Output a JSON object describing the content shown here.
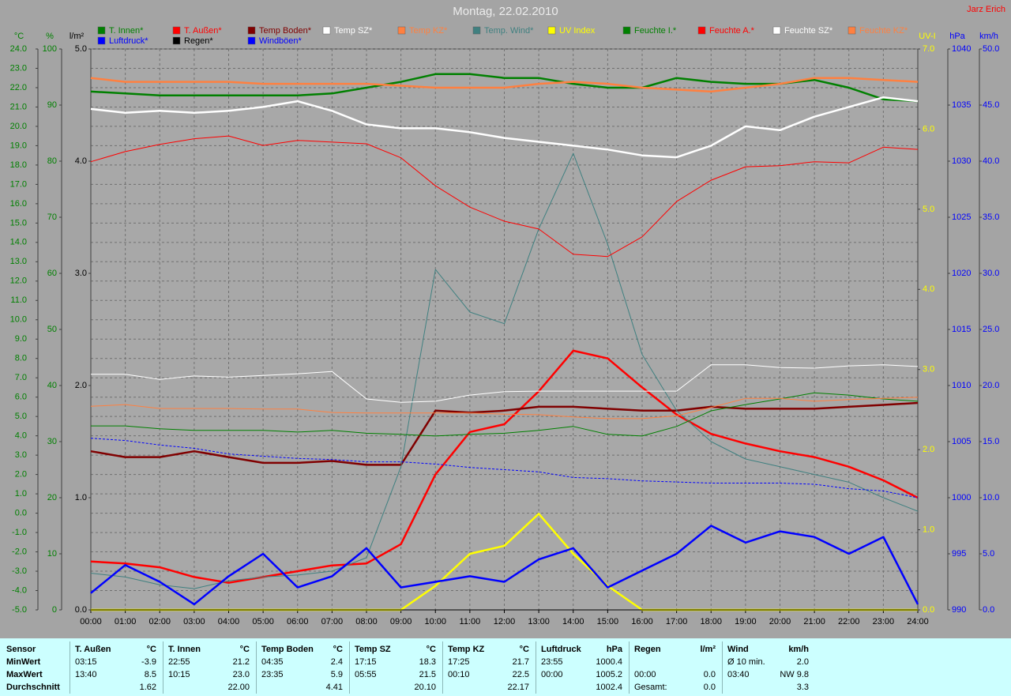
{
  "chart_data": {
    "type": "line",
    "title": "Montag, 22.02.2010",
    "author": "Jarz Erich",
    "grid": true,
    "x": [
      0,
      1,
      2,
      3,
      4,
      5,
      6,
      7,
      8,
      9,
      10,
      11,
      12,
      13,
      14,
      15,
      16,
      17,
      18,
      19,
      20,
      21,
      22,
      23,
      24
    ],
    "xlim": [
      0,
      24
    ],
    "xticks": [
      {
        "value": 0,
        "label": "00:00"
      },
      {
        "value": 1,
        "label": "01:00"
      },
      {
        "value": 2,
        "label": "02:00"
      },
      {
        "value": 3,
        "label": "03:00"
      },
      {
        "value": 4,
        "label": "04:00"
      },
      {
        "value": 5,
        "label": "05:00"
      },
      {
        "value": 6,
        "label": "06:00"
      },
      {
        "value": 7,
        "label": "07:00"
      },
      {
        "value": 8,
        "label": "08:00"
      },
      {
        "value": 9,
        "label": "09:00"
      },
      {
        "value": 10,
        "label": "10:00"
      },
      {
        "value": 11,
        "label": "11:00"
      },
      {
        "value": 12,
        "label": "12:00"
      },
      {
        "value": 13,
        "label": "13:00"
      },
      {
        "value": 14,
        "label": "14:00"
      },
      {
        "value": 15,
        "label": "15:00"
      },
      {
        "value": 16,
        "label": "16:00"
      },
      {
        "value": 17,
        "label": "17:00"
      },
      {
        "value": 18,
        "label": "18:00"
      },
      {
        "value": 19,
        "label": "19:00"
      },
      {
        "value": 20,
        "label": "20:00"
      },
      {
        "value": 21,
        "label": "21:00"
      },
      {
        "value": 22,
        "label": "22:00"
      },
      {
        "value": 23,
        "label": "23:00"
      },
      {
        "value": 24,
        "label": "24:00"
      }
    ],
    "axes": [
      {
        "label": "°C",
        "side": "left",
        "color": "#008000",
        "lim": [
          -5,
          24
        ],
        "ticks": [
          {
            "value": -5,
            "label": "-5.0"
          },
          {
            "value": -4,
            "label": "-4.0"
          },
          {
            "value": -3,
            "label": "-3.0"
          },
          {
            "value": -2,
            "label": "-2.0"
          },
          {
            "value": -1,
            "label": "-1.0"
          },
          {
            "value": 0,
            "label": "0.0"
          },
          {
            "value": 1,
            "label": "1.0"
          },
          {
            "value": 2,
            "label": "2.0"
          },
          {
            "value": 3,
            "label": "3.0"
          },
          {
            "value": 4,
            "label": "4.0"
          },
          {
            "value": 5,
            "label": "5.0"
          },
          {
            "value": 6,
            "label": "6.0"
          },
          {
            "value": 7,
            "label": "7.0"
          },
          {
            "value": 8,
            "label": "8.0"
          },
          {
            "value": 9,
            "label": "9.0"
          },
          {
            "value": 10,
            "label": "10.0"
          },
          {
            "value": 11,
            "label": "11.0"
          },
          {
            "value": 12,
            "label": "12.0"
          },
          {
            "value": 13,
            "label": "13.0"
          },
          {
            "value": 14,
            "label": "14.0"
          },
          {
            "value": 15,
            "label": "15.0"
          },
          {
            "value": 16,
            "label": "16.0"
          },
          {
            "value": 17,
            "label": "17.0"
          },
          {
            "value": 18,
            "label": "18.0"
          },
          {
            "value": 19,
            "label": "19.0"
          },
          {
            "value": 20,
            "label": "20.0"
          },
          {
            "value": 21,
            "label": "21.0"
          },
          {
            "value": 22,
            "label": "22.0"
          },
          {
            "value": 23,
            "label": "23.0"
          },
          {
            "value": 24,
            "label": "24.0"
          }
        ]
      },
      {
        "label": "%",
        "side": "left",
        "color": "#008000",
        "lim": [
          0,
          100
        ],
        "ticks": [
          0,
          10,
          20,
          30,
          40,
          50,
          60,
          70,
          80,
          90,
          100
        ]
      },
      {
        "label": "l/m²",
        "side": "left",
        "color": "#000000",
        "lim": [
          0,
          5
        ],
        "ticks": [
          {
            "value": 0,
            "label": "0.0"
          },
          {
            "value": 1,
            "label": "1.0"
          },
          {
            "value": 2,
            "label": "2.0"
          },
          {
            "value": 3,
            "label": "3.0"
          },
          {
            "value": 4,
            "label": "4.0"
          },
          {
            "value": 5,
            "label": "5.0"
          }
        ]
      },
      {
        "label": "UV-I",
        "side": "right",
        "color": "#ffff00",
        "lim": [
          0,
          7
        ],
        "ticks": [
          {
            "value": 0,
            "label": "0.0"
          },
          {
            "value": 1,
            "label": "1.0"
          },
          {
            "value": 2,
            "label": "2.0"
          },
          {
            "value": 3,
            "label": "3.0"
          },
          {
            "value": 4,
            "label": "4.0"
          },
          {
            "value": 5,
            "label": "5.0"
          },
          {
            "value": 6,
            "label": "6.0"
          },
          {
            "value": 7,
            "label": "7.0"
          }
        ]
      },
      {
        "label": "hPa",
        "side": "right",
        "color": "#0000ff",
        "lim": [
          990,
          1040
        ],
        "ticks": [
          990,
          995,
          1000,
          1005,
          1010,
          1015,
          1020,
          1025,
          1030,
          1035,
          1040
        ]
      },
      {
        "label": "km/h",
        "side": "right",
        "color": "#0000ff",
        "lim": [
          0,
          50
        ],
        "ticks": [
          {
            "value": 0,
            "label": "0.0"
          },
          {
            "value": 5,
            "label": "5.0"
          },
          {
            "value": 10,
            "label": "10.0"
          },
          {
            "value": 15,
            "label": "15.0"
          },
          {
            "value": 20,
            "label": "20.0"
          },
          {
            "value": 25,
            "label": "25.0"
          },
          {
            "value": 30,
            "label": "30.0"
          },
          {
            "value": 35,
            "label": "35.0"
          },
          {
            "value": 40,
            "label": "40.0"
          },
          {
            "value": 45,
            "label": "45.0"
          },
          {
            "value": 50,
            "label": "50.0"
          }
        ]
      }
    ],
    "series": [
      {
        "name": "T. Innen*",
        "color": "#008000",
        "axis": 0,
        "line": "thick",
        "values": [
          21.8,
          21.7,
          21.6,
          21.6,
          21.6,
          21.6,
          21.6,
          21.7,
          22.0,
          22.3,
          22.7,
          22.7,
          22.5,
          22.5,
          22.2,
          22.0,
          22.0,
          22.5,
          22.3,
          22.2,
          22.2,
          22.4,
          22.0,
          21.4,
          21.3
        ]
      },
      {
        "name": "T. Außen*",
        "color": "#ff0000",
        "axis": 0,
        "line": "thick",
        "values": [
          -2.5,
          -2.6,
          -2.8,
          -3.3,
          -3.6,
          -3.3,
          -3.0,
          -2.7,
          -2.6,
          -1.6,
          2.0,
          4.2,
          4.6,
          6.3,
          8.4,
          8.0,
          6.5,
          5.1,
          4.1,
          3.6,
          3.2,
          2.9,
          2.4,
          1.7,
          0.8
        ]
      },
      {
        "name": "Temp Boden*",
        "color": "#800000",
        "axis": 0,
        "line": "thick",
        "values": [
          3.2,
          2.9,
          2.9,
          3.2,
          2.9,
          2.6,
          2.6,
          2.7,
          2.5,
          2.5,
          5.3,
          5.2,
          5.3,
          5.5,
          5.5,
          5.4,
          5.3,
          5.3,
          5.5,
          5.4,
          5.4,
          5.4,
          5.5,
          5.6,
          5.7
        ]
      },
      {
        "name": "Temp SZ*",
        "color": "#ffffff",
        "axis": 0,
        "line": "thick",
        "values": [
          20.9,
          20.7,
          20.8,
          20.7,
          20.8,
          21.0,
          21.3,
          20.8,
          20.1,
          19.9,
          19.9,
          19.7,
          19.4,
          19.2,
          19.0,
          18.8,
          18.5,
          18.4,
          19.0,
          20.0,
          19.8,
          20.5,
          21.0,
          21.5,
          21.3
        ]
      },
      {
        "name": "Temp KZ*",
        "color": "#ff8040",
        "axis": 0,
        "line": "thick",
        "values": [
          22.5,
          22.3,
          22.3,
          22.3,
          22.3,
          22.2,
          22.2,
          22.2,
          22.2,
          22.1,
          22.0,
          22.0,
          22.0,
          22.2,
          22.3,
          22.2,
          22.0,
          21.9,
          21.8,
          22.0,
          22.2,
          22.5,
          22.5,
          22.4,
          22.3
        ]
      },
      {
        "name": "Temp. Wind*",
        "color": "#408080",
        "axis": 0,
        "line": "thin",
        "values": [
          -3.1,
          -3.3,
          -3.7,
          -3.9,
          -3.5,
          -3.3,
          -3.2,
          -3.0,
          -2.3,
          2.4,
          12.6,
          10.4,
          9.8,
          14.7,
          18.6,
          13.9,
          8.2,
          5.3,
          3.7,
          2.8,
          2.4,
          2.0,
          1.6,
          0.8,
          0.1
        ]
      },
      {
        "name": "UV Index",
        "color": "#ffff00",
        "axis": 3,
        "line": "thick",
        "values": [
          0,
          0,
          0,
          0,
          0,
          0,
          0,
          0,
          0,
          0,
          0.3,
          0.7,
          0.8,
          1.2,
          0.7,
          0.3,
          0,
          0,
          0,
          0,
          0,
          0,
          0,
          0,
          0
        ]
      },
      {
        "name": "Feuchte I.*",
        "color": "#008000",
        "axis": 1,
        "line": "thin",
        "values": [
          32.8,
          32.8,
          32.3,
          32,
          32,
          32,
          31.7,
          32,
          31.5,
          31.3,
          31,
          31.3,
          31.5,
          32,
          32.7,
          31.3,
          31,
          32.7,
          35.5,
          36.6,
          37.6,
          38.7,
          38.3,
          37.6,
          37.2
        ]
      },
      {
        "name": "Feuchte A.*",
        "color": "#ff0000",
        "axis": 1,
        "line": "thin",
        "values": [
          79.9,
          81.7,
          83,
          84,
          84.5,
          82.8,
          83.7,
          83.4,
          83.1,
          80.6,
          75.6,
          71.8,
          69.3,
          67.9,
          63.4,
          63,
          66.5,
          72.8,
          76.6,
          79,
          79.2,
          79.9,
          79.7,
          82.5,
          82.1
        ]
      },
      {
        "name": "Feuchte SZ*",
        "color": "#ffffff",
        "axis": 1,
        "line": "thin",
        "values": [
          42,
          42,
          41.1,
          41.7,
          41.5,
          41.8,
          42.1,
          42.5,
          37.6,
          37,
          37.2,
          38.3,
          38.9,
          39,
          39,
          39,
          39,
          39,
          43.7,
          43.7,
          43.2,
          43.1,
          43.5,
          43.7,
          43.4
        ]
      },
      {
        "name": "Feuchte KZ*",
        "color": "#ff8040",
        "axis": 1,
        "line": "thin",
        "values": [
          36.3,
          36.6,
          35.9,
          35.9,
          35.9,
          35.8,
          35.8,
          35.2,
          35.1,
          35.1,
          35.1,
          35.1,
          34.9,
          34.8,
          34.4,
          34.1,
          34.1,
          34.6,
          36.1,
          37.7,
          37.7,
          37.2,
          37.5,
          37.7,
          37.9
        ]
      },
      {
        "name": "Luftdruck*",
        "color": "#0000ff",
        "axis": 4,
        "line": "dashed",
        "values": [
          1005.3,
          1005.1,
          1004.7,
          1004.4,
          1003.9,
          1003.7,
          1003.5,
          1003.4,
          1003.2,
          1003.2,
          1003.0,
          1002.7,
          1002.5,
          1002.3,
          1001.8,
          1001.7,
          1001.5,
          1001.4,
          1001.3,
          1001.3,
          1001.3,
          1001.2,
          1000.8,
          1000.6,
          1000.0
        ]
      },
      {
        "name": "Regen*",
        "color": "#000000",
        "axis": 2,
        "line": "thin",
        "values": [
          0,
          0,
          0,
          0,
          0,
          0,
          0,
          0,
          0,
          0,
          0,
          0,
          0,
          0,
          0,
          0,
          0,
          0,
          0,
          0,
          0,
          0,
          0,
          0,
          0
        ]
      },
      {
        "name": "Windböen*",
        "color": "#0000ff",
        "axis": 5,
        "line": "thick",
        "values": [
          1.5,
          4.0,
          2.5,
          0.5,
          3.0,
          5.0,
          2.0,
          3.0,
          5.5,
          2.0,
          2.5,
          3.0,
          2.5,
          4.5,
          5.5,
          2.0,
          3.5,
          5.0,
          7.5,
          6.0,
          7.0,
          6.5,
          5.0,
          6.5,
          0.5
        ]
      }
    ]
  },
  "summary_table": {
    "header": "Sensor",
    "row_labels": [
      "MinWert",
      "MaxWert",
      "Durchschnitt"
    ],
    "groups": [
      {
        "name": "T. Außen",
        "unit": "°C",
        "rows": [
          [
            "03:15",
            "-3.9"
          ],
          [
            "13:40",
            "8.5"
          ],
          [
            null,
            "1.62"
          ]
        ]
      },
      {
        "name": "T. Innen",
        "unit": "°C",
        "rows": [
          [
            "22:55",
            "21.2"
          ],
          [
            "10:15",
            "23.0"
          ],
          [
            null,
            "22.00"
          ]
        ]
      },
      {
        "name": "Temp Boden",
        "unit": "°C",
        "rows": [
          [
            "04:35",
            "2.4"
          ],
          [
            "23:35",
            "5.9"
          ],
          [
            null,
            "4.41"
          ]
        ]
      },
      {
        "name": "Temp SZ",
        "unit": "°C",
        "rows": [
          [
            "17:15",
            "18.3"
          ],
          [
            "05:55",
            "21.5"
          ],
          [
            null,
            "20.10"
          ]
        ]
      },
      {
        "name": "Temp KZ",
        "unit": "°C",
        "rows": [
          [
            "17:25",
            "21.7"
          ],
          [
            "00:10",
            "22.5"
          ],
          [
            null,
            "22.17"
          ]
        ]
      },
      {
        "name": "Luftdruck",
        "unit": "hPa",
        "rows": [
          [
            "23:55",
            "1000.4"
          ],
          [
            "00:00",
            "1005.2"
          ],
          [
            null,
            "1002.4"
          ]
        ]
      },
      {
        "name": "Regen",
        "unit": "l/m²",
        "rows": [
          [
            null,
            null
          ],
          [
            "00:00",
            "0.0"
          ],
          [
            "Gesamt:",
            "0.0"
          ]
        ]
      },
      {
        "name": "Wind",
        "unit": "km/h",
        "rows": [
          [
            "Ø 10 min.",
            "2.0"
          ],
          [
            "03:40",
            "NW 9.8"
          ],
          [
            null,
            "3.3"
          ]
        ]
      }
    ]
  }
}
